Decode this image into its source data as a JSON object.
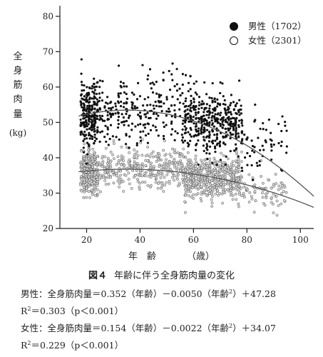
{
  "chart_data": {
    "type": "scatter",
    "ylabel_chars": [
      "全",
      "身",
      "筋",
      "肉",
      "量"
    ],
    "ylabel_unit": "(kg)",
    "xlabel_main": "年　齢",
    "xlabel_unit": "（歳）",
    "xlim": [
      10,
      105
    ],
    "ylim": [
      20,
      83
    ],
    "xticks": [
      20,
      40,
      60,
      80,
      100
    ],
    "yticks": [
      20,
      30,
      40,
      50,
      60,
      70,
      80
    ],
    "grid": false,
    "legend_position": "top-right",
    "series": [
      {
        "name": "男性（1702）",
        "marker": "filled-circle",
        "color": "#111111",
        "fit": {
          "a": 47.28,
          "b": 0.352,
          "c": -0.005
        },
        "clusters": [
          {
            "x_range": [
              18,
              24
            ],
            "y_mean": 52.5,
            "y_sd": 4.5,
            "count": 240
          },
          {
            "x_range": [
              24,
              56
            ],
            "y_mean": 53.0,
            "y_sd": 4.8,
            "count": 260
          },
          {
            "x_range": [
              56,
              78
            ],
            "y_mean": 50.0,
            "y_sd": 4.5,
            "count": 420
          },
          {
            "x_range": [
              78,
              95
            ],
            "y_mean": 45.0,
            "y_sd": 4.0,
            "count": 60
          }
        ]
      },
      {
        "name": "女性（2301）",
        "marker": "open-circle",
        "color": "#111111",
        "fit": {
          "a": 34.07,
          "b": 0.154,
          "c": -0.0022
        },
        "clusters": [
          {
            "x_range": [
              18,
              24
            ],
            "y_mean": 36.0,
            "y_sd": 3.0,
            "count": 300
          },
          {
            "x_range": [
              24,
              56
            ],
            "y_mean": 36.8,
            "y_sd": 3.0,
            "count": 320
          },
          {
            "x_range": [
              56,
              78
            ],
            "y_mean": 34.5,
            "y_sd": 3.0,
            "count": 520
          },
          {
            "x_range": [
              78,
              95
            ],
            "y_mean": 30.5,
            "y_sd": 2.6,
            "count": 80
          }
        ]
      }
    ]
  },
  "caption": {
    "figure_no": "図４",
    "title": "年齢に伴う全身筋肉量の変化",
    "male_eq": "男性：全身筋肉量＝0.352（年齢）－0.0050（年齢",
    "male_eq_tail": "）＋47.28",
    "male_r2": "R",
    "male_r2_tail": "＝0.303（p＜0.001）",
    "female_eq": "女性：全身筋肉量＝0.154（年齢）－0.0022（年齢",
    "female_eq_tail": "）＋34.07",
    "female_r2": "R",
    "female_r2_tail": "＝0.229（p＜0.001）",
    "superscript": "2"
  }
}
